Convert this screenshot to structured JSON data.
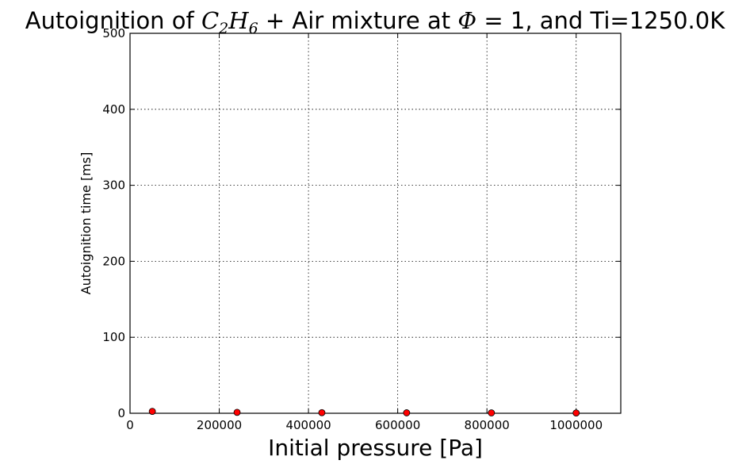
{
  "chart_data": {
    "type": "scatter",
    "title": {
      "prefix": "Autoignition of ",
      "species_c": "C",
      "species_c_sub": "2",
      "species_h": "H",
      "species_h_sub": "6",
      "mid": " + Air mixture at ",
      "phi_symbol": "Φ",
      "suffix": " = 1, and Ti=1250.0K"
    },
    "xlabel": "Initial pressure [Pa]",
    "ylabel": "Autoignition time [ms]",
    "xlim": [
      0,
      1100000
    ],
    "ylim": [
      0,
      500
    ],
    "x_ticks": [
      0,
      200000,
      400000,
      600000,
      800000,
      1000000
    ],
    "x_tick_labels": [
      "0",
      "200000",
      "400000",
      "600000",
      "800000",
      "1000000"
    ],
    "y_ticks": [
      0,
      100,
      200,
      300,
      400,
      500
    ],
    "y_tick_labels": [
      "0",
      "100",
      "200",
      "300",
      "400",
      "500"
    ],
    "grid": true,
    "grid_style": "dotted",
    "marker_color": "#ff0000",
    "marker_edge_color": "#000000",
    "series": [
      {
        "x": [
          50000,
          240000,
          430000,
          620000,
          810000,
          1000000
        ],
        "y": [
          2.5,
          1.2,
          0.8,
          0.6,
          0.5,
          0.4
        ]
      }
    ]
  }
}
